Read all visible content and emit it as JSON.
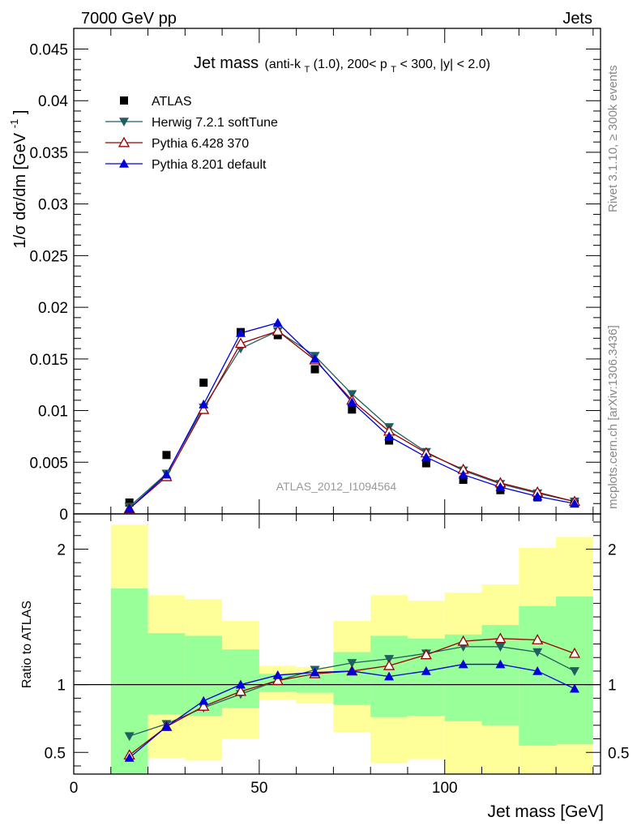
{
  "header": {
    "left": "7000 GeV pp",
    "right": "Jets",
    "rivet": "Rivet 3.1.10, ≥ 300k events",
    "mcplots": "mcplots.cern.ch [arXiv:1306.3436]",
    "analysis": "ATLAS_2012_I1094564"
  },
  "chart_data": [
    {
      "id": "main",
      "type": "scatter",
      "title": {
        "main": "Jet mass",
        "parts": [
          "(anti-k",
          "T",
          "(1.0), 200< p",
          "T",
          " < 300, |y| < 2.0)"
        ]
      },
      "ylabel": {
        "parts": [
          "1/σ dσ/dm [GeV",
          "-1",
          "]"
        ]
      },
      "xlim": [
        0,
        142
      ],
      "ylim": [
        0,
        0.047
      ],
      "yticks": [
        0,
        0.005,
        0.01,
        0.015,
        0.02,
        0.025,
        0.03,
        0.035,
        0.04,
        0.045
      ],
      "ytick_labels": [
        "0",
        "0.005",
        "0.01",
        "0.015",
        "0.02",
        "0.025",
        "0.03",
        "0.035",
        "0.04",
        "0.045"
      ],
      "x": [
        15,
        25,
        35,
        45,
        55,
        65,
        75,
        85,
        95,
        105,
        115,
        125,
        135
      ],
      "legend": [
        "ATLAS",
        "Herwig 7.2.1 softTune",
        "Pythia 6.428 370",
        "Pythia 8.201 default"
      ],
      "series": [
        {
          "name": "ATLAS",
          "color": "#000000",
          "marker": "square",
          "values": [
            0.0011,
            0.0057,
            0.0127,
            0.0176,
            0.0173,
            0.014,
            0.0101,
            0.0071,
            0.0049,
            0.0033,
            0.0023,
            0.0016,
            0.001
          ]
        },
        {
          "name": "Herwig 7.2.1 softTune",
          "color": "#1f5f5f",
          "marker": "triangle-down",
          "values": [
            0.0007,
            0.0039,
            0.0103,
            0.016,
            0.0177,
            0.0153,
            0.0116,
            0.0084,
            0.006,
            0.0042,
            0.0029,
            0.002,
            0.0012
          ]
        },
        {
          "name": "Pythia 6.428 370",
          "color": "#990000",
          "marker": "triangle-up-open",
          "values": [
            0.0005,
            0.0036,
            0.0101,
            0.0165,
            0.0177,
            0.0149,
            0.011,
            0.008,
            0.0059,
            0.0043,
            0.003,
            0.0021,
            0.0012
          ]
        },
        {
          "name": "Pythia 8.201 default",
          "color": "#0000dd",
          "marker": "triangle-up",
          "values": [
            0.0005,
            0.0038,
            0.0106,
            0.0175,
            0.0185,
            0.015,
            0.0108,
            0.0075,
            0.0055,
            0.0038,
            0.0026,
            0.0017,
            0.001
          ]
        }
      ]
    },
    {
      "id": "ratio",
      "type": "scatter",
      "ylabel": "Ratio to ATLAS",
      "xlabel": "Jet mass [GeV]",
      "xlim": [
        0,
        142
      ],
      "ylim": [
        0.34,
        2.26
      ],
      "xticks": [
        0,
        50,
        100
      ],
      "xtick_labels": [
        "0",
        "50",
        "100"
      ],
      "yticks": [
        0.5,
        1,
        2
      ],
      "ytick_labels": [
        "0.5",
        "1",
        "2"
      ],
      "reference_line": 1,
      "bin_edges": [
        10,
        20,
        30,
        40,
        50,
        60,
        70,
        80,
        90,
        100,
        110,
        120,
        130,
        140
      ],
      "band_outer": {
        "color": "#ffff99",
        "low": [
          0.4,
          0.46,
          0.44,
          0.6,
          0.89,
          0.86,
          0.65,
          0.42,
          0.45,
          0.34,
          0.34,
          0.34,
          0.34
        ],
        "high": [
          2.18,
          1.66,
          1.63,
          1.47,
          1.14,
          1.13,
          1.47,
          1.66,
          1.62,
          1.68,
          1.74,
          2.01,
          2.09
        ]
      },
      "band_inner": {
        "color": "#99ff99",
        "low": [
          0.34,
          0.78,
          0.77,
          0.83,
          0.95,
          0.94,
          0.85,
          0.76,
          0.77,
          0.73,
          0.7,
          0.55,
          0.56
        ],
        "high": [
          1.71,
          1.38,
          1.36,
          1.26,
          1.08,
          1.08,
          1.24,
          1.36,
          1.34,
          1.37,
          1.44,
          1.58,
          1.65
        ]
      },
      "x": [
        15,
        25,
        35,
        45,
        55,
        65,
        75,
        85,
        95,
        105,
        115,
        125,
        135
      ],
      "series": [
        {
          "name": "Herwig 7.2.1 softTune",
          "color": "#1f5f5f",
          "marker": "triangle-down",
          "values": [
            0.62,
            0.71,
            0.83,
            0.93,
            1.03,
            1.11,
            1.16,
            1.19,
            1.23,
            1.28,
            1.28,
            1.24,
            1.1
          ]
        },
        {
          "name": "Pythia 6.428 370",
          "color": "#990000",
          "marker": "triangle-up-open",
          "values": [
            0.48,
            0.69,
            0.84,
            0.95,
            1.03,
            1.08,
            1.1,
            1.14,
            1.22,
            1.32,
            1.34,
            1.33,
            1.23
          ]
        },
        {
          "name": "Pythia 8.201 default",
          "color": "#0000dd",
          "marker": "triangle-up",
          "values": [
            0.46,
            0.69,
            0.88,
            1.0,
            1.07,
            1.09,
            1.1,
            1.06,
            1.1,
            1.15,
            1.15,
            1.1,
            0.97
          ]
        }
      ]
    }
  ]
}
